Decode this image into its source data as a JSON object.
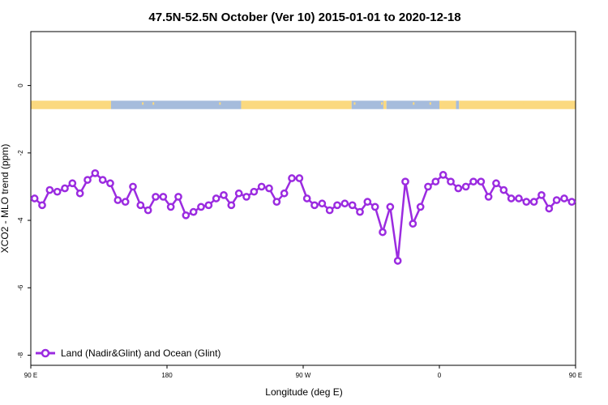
{
  "chart_data": {
    "type": "line",
    "title": "47.5N-52.5N October (Ver 10)   2015-01-01 to 2020-12-18",
    "xlabel": "Longitude (deg E)",
    "ylabel": "XCO2 - MLO trend (ppm)",
    "xlim": [
      90,
      450
    ],
    "ylim": [
      -8.3,
      1.6
    ],
    "x_ticks": [
      {
        "value": 90,
        "label": "90 E"
      },
      {
        "value": 180,
        "label": "180"
      },
      {
        "value": 270,
        "label": "90 W"
      },
      {
        "value": 360,
        "label": "0"
      },
      {
        "value": 450,
        "label": "90 E"
      }
    ],
    "y_ticks": [
      {
        "value": 0,
        "label": "0"
      },
      {
        "value": -2,
        "label": "-2"
      },
      {
        "value": -4,
        "label": "-4"
      },
      {
        "value": -6,
        "label": "-6"
      },
      {
        "value": -8,
        "label": "-8"
      }
    ],
    "grid": false,
    "legend_position": "bottom-left",
    "land_ocean_strip": {
      "y_range": [
        -0.7,
        -0.45
      ],
      "land_color": "#fbd97f",
      "ocean_color": "#a6bcdc",
      "segments": [
        {
          "from": 90,
          "to": 143,
          "kind": "land"
        },
        {
          "from": 143,
          "to": 229,
          "kind": "ocean"
        },
        {
          "from": 229,
          "to": 302,
          "kind": "land"
        },
        {
          "from": 302,
          "to": 323,
          "kind": "ocean"
        },
        {
          "from": 323,
          "to": 325,
          "kind": "land"
        },
        {
          "from": 325,
          "to": 360,
          "kind": "ocean"
        },
        {
          "from": 360,
          "to": 371,
          "kind": "land"
        },
        {
          "from": 371,
          "to": 373,
          "kind": "ocean"
        },
        {
          "from": 373,
          "to": 450,
          "kind": "land"
        }
      ],
      "islands": [
        164,
        171,
        215,
        304,
        322,
        343,
        354,
        415,
        431
      ]
    },
    "series": [
      {
        "name": "Land (Nadir&Glint) and Ocean (Glint)",
        "color": "#9b2be0",
        "x": [
          92.5,
          97.5,
          102.5,
          107.5,
          112.5,
          117.5,
          122.5,
          127.5,
          132.5,
          137.5,
          142.5,
          147.5,
          152.5,
          157.5,
          162.5,
          167.5,
          172.5,
          177.5,
          182.5,
          187.5,
          192.5,
          197.5,
          202.5,
          207.5,
          212.5,
          217.5,
          222.5,
          227.5,
          232.5,
          237.5,
          242.5,
          247.5,
          252.5,
          257.5,
          262.5,
          267.5,
          272.5,
          277.5,
          282.5,
          287.5,
          292.5,
          297.5,
          302.5,
          307.5,
          312.5,
          317.5,
          322.5,
          327.5,
          332.5,
          337.5,
          342.5,
          347.5,
          352.5,
          357.5,
          362.5,
          367.5,
          372.5,
          377.5,
          382.5,
          387.5,
          392.5,
          397.5,
          402.5,
          407.5,
          412.5,
          417.5,
          422.5,
          427.5,
          432.5,
          437.5,
          442.5,
          447.5
        ],
        "values": [
          -3.35,
          -3.55,
          -3.1,
          -3.15,
          -3.05,
          -2.9,
          -3.2,
          -2.8,
          -2.6,
          -2.8,
          -2.9,
          -3.4,
          -3.45,
          -3.0,
          -3.55,
          -3.7,
          -3.3,
          -3.3,
          -3.6,
          -3.3,
          -3.85,
          -3.75,
          -3.6,
          -3.55,
          -3.35,
          -3.25,
          -3.55,
          -3.2,
          -3.3,
          -3.15,
          -3.0,
          -3.05,
          -3.45,
          -3.2,
          -2.75,
          -2.75,
          -3.35,
          -3.55,
          -3.5,
          -3.7,
          -3.55,
          -3.5,
          -3.55,
          -3.75,
          -3.45,
          -3.6,
          -4.35,
          -3.6,
          -5.2,
          -2.85,
          -4.1,
          -3.6,
          -3.0,
          -2.85,
          -2.65,
          -2.85,
          -3.05,
          -3.0,
          -2.85,
          -2.85,
          -3.3,
          -2.9,
          -3.1,
          -3.35,
          -3.35,
          -3.45,
          -3.45,
          -3.25,
          -3.65,
          -3.4,
          -3.35,
          -3.45
        ]
      }
    ]
  }
}
